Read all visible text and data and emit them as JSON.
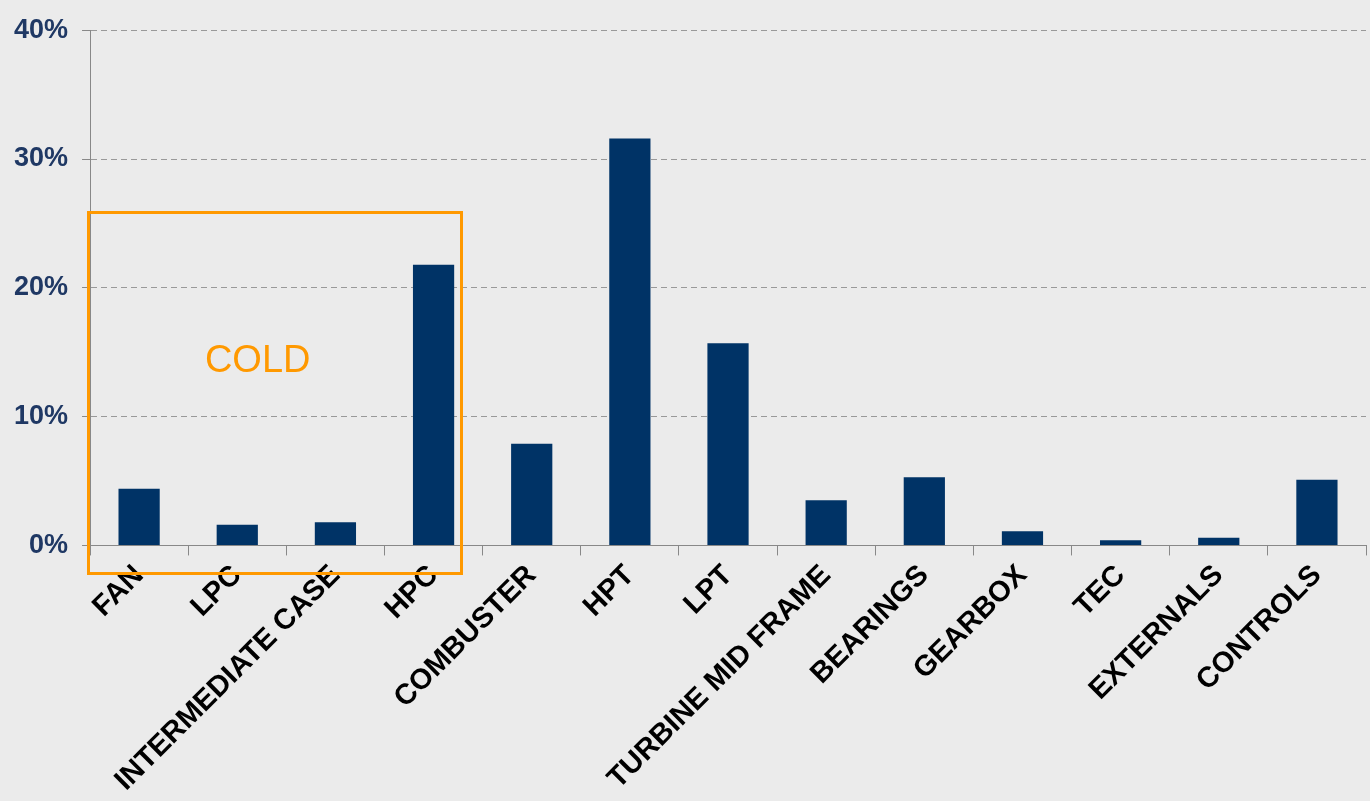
{
  "chart_data": {
    "type": "bar",
    "categories": [
      "FAN",
      "LPC",
      "INTERMEDIATE CASE",
      "HPC",
      "COMBUSTER",
      "HPT",
      "LPT",
      "TURBINE MID FRAME",
      "BEARINGS",
      "GEARBOX",
      "TEC",
      "EXTERNALS",
      "CONTROLS"
    ],
    "values": [
      4.4,
      1.6,
      1.8,
      21.8,
      7.9,
      31.6,
      15.7,
      3.5,
      5.3,
      1.1,
      0.4,
      0.6,
      5.1
    ],
    "color": "#003366",
    "ylim": [
      0,
      40
    ],
    "yticks": [
      {
        "value": 0,
        "label": "0%"
      },
      {
        "value": 10,
        "label": "10%"
      },
      {
        "value": 20,
        "label": "20%"
      },
      {
        "value": 30,
        "label": "30%"
      },
      {
        "value": 40,
        "label": "40%"
      }
    ],
    "grid": "y",
    "annotations": [
      "COLD"
    ]
  }
}
